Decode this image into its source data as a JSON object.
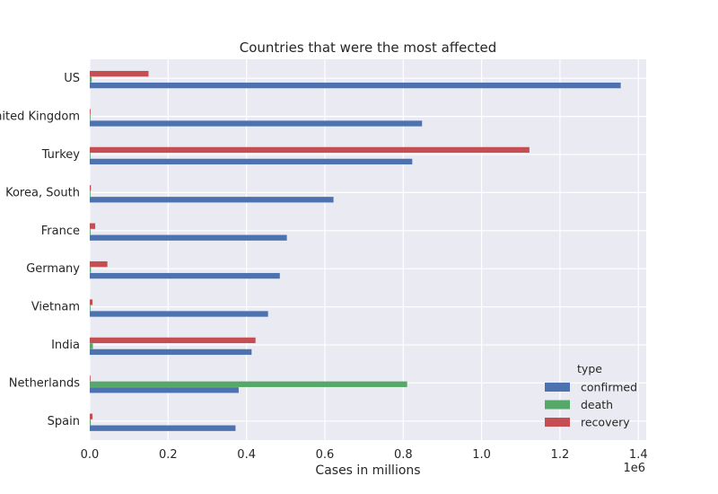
{
  "chart_data": {
    "type": "bar",
    "orientation": "horizontal",
    "title": "Countries that were the most affected",
    "xlabel": "Cases in millions",
    "ylabel": "",
    "x_offset_label": "1e6",
    "xlim": [
      0,
      1420000
    ],
    "xticks": [
      0,
      200000,
      400000,
      600000,
      800000,
      1000000,
      1200000,
      1400000
    ],
    "xtick_labels": [
      "0.0",
      "0.2",
      "0.4",
      "0.6",
      "0.8",
      "1.0",
      "1.2",
      "1.4"
    ],
    "categories": [
      "US",
      "United Kingdom",
      "Turkey",
      "Korea, South",
      "France",
      "Germany",
      "Vietnam",
      "India",
      "Netherlands",
      "Spain"
    ],
    "series": [
      {
        "name": "confirmed",
        "color": "#4c72b0",
        "values": [
          1355000,
          848000,
          823000,
          622000,
          503000,
          485000,
          455000,
          413000,
          380000,
          372000
        ]
      },
      {
        "name": "death",
        "color": "#55a868",
        "values": [
          5000,
          1500,
          1000,
          1000,
          2000,
          3000,
          500,
          8000,
          810000,
          2500
        ]
      },
      {
        "name": "recovery",
        "color": "#c44e52",
        "values": [
          150000,
          2000,
          1122000,
          3000,
          14000,
          45000,
          7000,
          423000,
          1500,
          7000
        ]
      }
    ],
    "legend": {
      "title": "type",
      "placement": "lower right"
    },
    "grid": true,
    "style": {
      "background": "#eaeaf2",
      "gridcolor": "#ffffff"
    }
  }
}
